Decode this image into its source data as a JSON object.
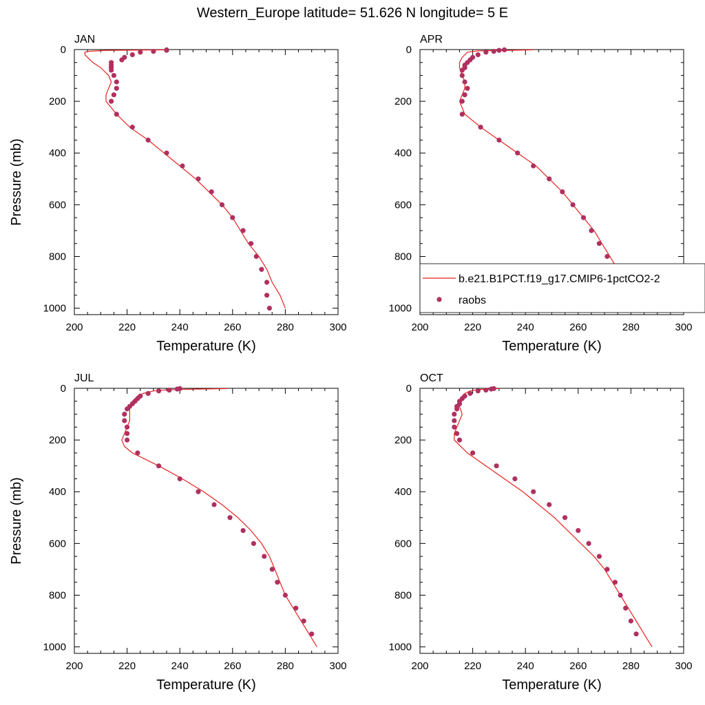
{
  "title": "Western_Europe  latitude= 51.626 N longitude= 5 E",
  "legend": {
    "model_label": "b.e21.B1PCT.f19_g17.CMIP6-1pctCO2-2",
    "obs_label": "raobs",
    "placement": "inside APR panel, lower right"
  },
  "colors": {
    "model_line": "#e8201e",
    "obs_marker": "#b03060"
  },
  "chart_data": [
    {
      "type": "line",
      "title": "JAN",
      "xlabel": "Temperature (K)",
      "ylabel": "Pressure (mb)",
      "xlim": [
        200,
        300
      ],
      "ylim": [
        1025,
        0
      ],
      "x_ticks": [
        200,
        220,
        240,
        260,
        280,
        300
      ],
      "y_ticks": [
        0,
        200,
        400,
        600,
        800,
        1000
      ],
      "model": {
        "p": [
          1,
          3,
          7,
          10,
          20,
          30,
          50,
          70,
          100,
          125,
          150,
          175,
          200,
          250,
          300,
          350,
          400,
          450,
          500,
          550,
          600,
          650,
          700,
          750,
          800,
          850,
          900,
          950,
          1000
        ],
        "t": [
          235,
          212,
          205,
          204,
          204,
          205,
          207,
          210,
          213,
          214,
          213,
          212,
          212,
          216,
          221,
          228,
          234,
          240,
          246,
          251,
          256,
          260,
          263,
          266,
          270,
          273,
          275,
          278,
          280
        ]
      },
      "obs": {
        "p": [
          1,
          3,
          7,
          10,
          20,
          30,
          40,
          50,
          60,
          70,
          80,
          100,
          125,
          150,
          175,
          200,
          250,
          300,
          350,
          400,
          450,
          500,
          550,
          600,
          650,
          700,
          750,
          800,
          850,
          900,
          950,
          1000
        ],
        "t": [
          235,
          235,
          230,
          225,
          222,
          219,
          218,
          214,
          214,
          214,
          214,
          215,
          216,
          216,
          215,
          214,
          216,
          222,
          228,
          235,
          241,
          247,
          252,
          256,
          260,
          264,
          267,
          269,
          271,
          273,
          273,
          274
        ]
      }
    },
    {
      "type": "line",
      "title": "APR",
      "xlabel": "Temperature (K)",
      "ylabel": "",
      "xlim": [
        200,
        300
      ],
      "ylim": [
        1025,
        0
      ],
      "x_ticks": [
        200,
        220,
        240,
        260,
        280,
        300
      ],
      "y_ticks": [
        0,
        200,
        400,
        600,
        800,
        1000
      ],
      "model": {
        "p": [
          1,
          5,
          10,
          20,
          30,
          50,
          70,
          100,
          125,
          150,
          175,
          200,
          250,
          300,
          350,
          400,
          450,
          500,
          550,
          600,
          650,
          700,
          750,
          800,
          850,
          900,
          950,
          1000
        ],
        "t": [
          243,
          222,
          218,
          217,
          216,
          215,
          215,
          216,
          217,
          217,
          216,
          215,
          217,
          223,
          230,
          237,
          244,
          249,
          254,
          258,
          262,
          266,
          269,
          272,
          275,
          278,
          281,
          284
        ]
      },
      "obs": {
        "p": [
          1,
          3,
          7,
          10,
          20,
          30,
          40,
          50,
          60,
          70,
          80,
          100,
          125,
          150,
          175,
          200,
          250,
          300,
          350,
          400,
          450,
          500,
          550,
          600,
          650,
          700,
          750,
          800,
          850,
          900,
          950
        ],
        "t": [
          232,
          230,
          228,
          225,
          222,
          220,
          219,
          218,
          217,
          217,
          216,
          216,
          217,
          218,
          217,
          216,
          216,
          223,
          230,
          237,
          243,
          249,
          254,
          258,
          262,
          265,
          268,
          271,
          273,
          277,
          280
        ]
      }
    },
    {
      "type": "line",
      "title": "JUL",
      "xlabel": "Temperature (K)",
      "ylabel": "Pressure (mb)",
      "xlim": [
        200,
        300
      ],
      "ylim": [
        1025,
        0
      ],
      "x_ticks": [
        200,
        220,
        240,
        260,
        280,
        300
      ],
      "y_ticks": [
        0,
        200,
        400,
        600,
        800,
        1000
      ],
      "model": {
        "p": [
          1,
          5,
          10,
          20,
          30,
          50,
          70,
          100,
          125,
          150,
          175,
          200,
          225,
          250,
          300,
          350,
          400,
          450,
          500,
          550,
          600,
          650,
          700,
          750,
          800,
          850,
          900,
          950,
          1000
        ],
        "t": [
          258,
          236,
          230,
          226,
          224,
          222,
          221,
          221,
          221,
          220,
          219,
          218,
          219,
          222,
          232,
          241,
          249,
          256,
          262,
          267,
          271,
          274,
          276,
          278,
          280,
          283,
          286,
          289,
          292
        ]
      },
      "obs": {
        "p": [
          1,
          3,
          7,
          10,
          20,
          30,
          40,
          50,
          60,
          70,
          80,
          100,
          125,
          150,
          175,
          200,
          250,
          300,
          350,
          400,
          450,
          500,
          550,
          600,
          650,
          700,
          750,
          800,
          850,
          900,
          950
        ],
        "t": [
          240,
          239,
          236,
          232,
          228,
          225,
          224,
          223,
          222,
          221,
          220,
          219,
          219,
          220,
          220,
          220,
          224,
          232,
          240,
          247,
          253,
          259,
          264,
          268,
          272,
          275,
          277,
          280,
          284,
          287,
          290
        ]
      }
    },
    {
      "type": "line",
      "title": "OCT",
      "xlabel": "Temperature (K)",
      "ylabel": "",
      "xlim": [
        200,
        300
      ],
      "ylim": [
        1025,
        0
      ],
      "x_ticks": [
        200,
        220,
        240,
        260,
        280,
        300
      ],
      "y_ticks": [
        0,
        200,
        400,
        600,
        800,
        1000
      ],
      "model": {
        "p": [
          1,
          5,
          10,
          20,
          30,
          50,
          70,
          100,
          125,
          150,
          175,
          200,
          250,
          300,
          350,
          400,
          450,
          500,
          550,
          600,
          650,
          700,
          750,
          800,
          850,
          900,
          950,
          1000
        ],
        "t": [
          230,
          222,
          219,
          217,
          216,
          215,
          215,
          216,
          215,
          214,
          213,
          213,
          218,
          225,
          232,
          239,
          245,
          251,
          256,
          261,
          266,
          270,
          273,
          276,
          279,
          282,
          285,
          288
        ]
      },
      "obs": {
        "p": [
          1,
          3,
          7,
          10,
          20,
          30,
          40,
          50,
          60,
          70,
          80,
          100,
          125,
          150,
          175,
          200,
          250,
          300,
          350,
          400,
          450,
          500,
          550,
          600,
          650,
          700,
          750,
          800,
          850,
          900,
          950
        ],
        "t": [
          228,
          227,
          225,
          222,
          219,
          217,
          216,
          215,
          215,
          214,
          214,
          213,
          213,
          213,
          214,
          215,
          220,
          229,
          236,
          243,
          249,
          255,
          260,
          264,
          268,
          271,
          274,
          276,
          278,
          280,
          282
        ]
      }
    }
  ]
}
